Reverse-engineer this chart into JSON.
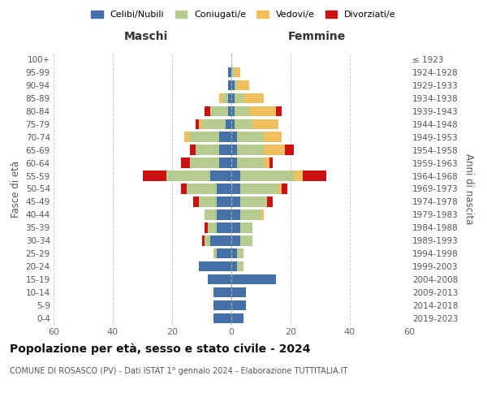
{
  "age_groups": [
    "0-4",
    "5-9",
    "10-14",
    "15-19",
    "20-24",
    "25-29",
    "30-34",
    "35-39",
    "40-44",
    "45-49",
    "50-54",
    "55-59",
    "60-64",
    "65-69",
    "70-74",
    "75-79",
    "80-84",
    "85-89",
    "90-94",
    "95-99",
    "100+"
  ],
  "birth_years": [
    "2019-2023",
    "2014-2018",
    "2009-2013",
    "2004-2008",
    "1999-2003",
    "1994-1998",
    "1989-1993",
    "1984-1988",
    "1979-1983",
    "1974-1978",
    "1969-1973",
    "1964-1968",
    "1959-1963",
    "1954-1958",
    "1949-1953",
    "1944-1948",
    "1939-1943",
    "1934-1938",
    "1929-1933",
    "1924-1928",
    "≤ 1923"
  ],
  "maschi": {
    "celibi": [
      6,
      6,
      6,
      8,
      11,
      5,
      7,
      5,
      5,
      5,
      5,
      7,
      4,
      4,
      4,
      2,
      1,
      1,
      1,
      1,
      0
    ],
    "coniugati": [
      0,
      0,
      0,
      0,
      0,
      1,
      2,
      3,
      4,
      6,
      10,
      15,
      10,
      8,
      10,
      8,
      6,
      2,
      0,
      0,
      0
    ],
    "vedovi": [
      0,
      0,
      0,
      0,
      0,
      0,
      0,
      0,
      0,
      0,
      0,
      0,
      0,
      0,
      2,
      1,
      0,
      1,
      0,
      0,
      0
    ],
    "divorziati": [
      0,
      0,
      0,
      0,
      0,
      0,
      1,
      1,
      0,
      2,
      2,
      8,
      3,
      2,
      0,
      1,
      2,
      0,
      0,
      0,
      0
    ]
  },
  "femmine": {
    "nubili": [
      4,
      5,
      5,
      15,
      2,
      2,
      3,
      3,
      3,
      3,
      3,
      3,
      2,
      2,
      2,
      1,
      1,
      1,
      1,
      0,
      0
    ],
    "coniugate": [
      0,
      0,
      0,
      0,
      2,
      2,
      4,
      4,
      7,
      9,
      13,
      18,
      9,
      9,
      9,
      6,
      5,
      3,
      1,
      1,
      0
    ],
    "vedove": [
      0,
      0,
      0,
      0,
      0,
      0,
      0,
      0,
      1,
      0,
      1,
      3,
      2,
      7,
      6,
      9,
      9,
      7,
      4,
      2,
      0
    ],
    "divorziate": [
      0,
      0,
      0,
      0,
      0,
      0,
      0,
      0,
      0,
      2,
      2,
      8,
      1,
      3,
      0,
      0,
      2,
      0,
      0,
      0,
      0
    ]
  },
  "colors": {
    "celibi": "#4472a8",
    "coniugati": "#b5cc8e",
    "vedovi": "#f0c060",
    "divorziati": "#cc1111"
  },
  "xlim": 60,
  "title": "Popolazione per età, sesso e stato civile - 2024",
  "subtitle": "COMUNE DI ROSASCO (PV) - Dati ISTAT 1° gennaio 2024 - Elaborazione TUTTITALIA.IT",
  "ylabel_left": "Fasce di età",
  "ylabel_right": "Anni di nascita",
  "xlabel_maschi": "Maschi",
  "xlabel_femmine": "Femmine",
  "legend_labels": [
    "Celibi/Nubili",
    "Coniugati/e",
    "Vedovi/e",
    "Divorziati/e"
  ],
  "background_color": "#ffffff"
}
